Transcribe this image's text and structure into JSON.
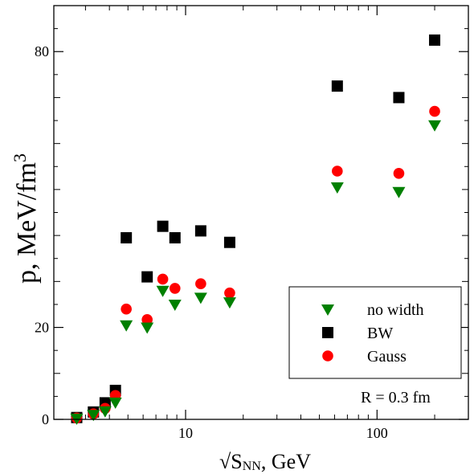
{
  "chart_data": {
    "type": "scatter",
    "xlabel_prefix": "√S",
    "xlabel_sub": "NN",
    "xlabel_suffix": ", GeV",
    "ylabel_main": "p, MeV/fm",
    "ylabel_sup": "3",
    "x_scale": "log",
    "xlim": [
      2.05,
      300
    ],
    "ylim": [
      0,
      90
    ],
    "x_major_ticks": [
      10,
      100
    ],
    "x_tick_labels": [
      "10",
      "100"
    ],
    "y_major_ticks": [
      0,
      20,
      80
    ],
    "y_tick_labels": [
      "0",
      "20",
      "80"
    ],
    "y_minor_ticks": [
      10,
      30,
      40,
      50,
      60,
      70
    ],
    "legend_position": "lower-right",
    "annotation": "R = 0.3 fm",
    "series": [
      {
        "name": "no width",
        "marker": "triangle-down",
        "color": "#008000",
        "x": [
          2.7,
          3.3,
          3.8,
          4.3,
          4.9,
          6.3,
          7.6,
          8.8,
          12.0,
          17.0,
          62.0,
          130.0,
          200.0
        ],
        "y": [
          0.2,
          1.0,
          1.8,
          3.7,
          20.5,
          20.0,
          28.0,
          25.0,
          26.5,
          25.5,
          50.5,
          49.5,
          64.0
        ]
      },
      {
        "name": "BW",
        "marker": "square",
        "color": "#000000",
        "x": [
          2.7,
          3.3,
          3.8,
          4.3,
          4.9,
          6.3,
          7.6,
          8.8,
          12.0,
          17.0,
          62.0,
          130.0,
          200.0
        ],
        "y": [
          0.4,
          1.6,
          3.6,
          6.3,
          39.5,
          31.0,
          42.0,
          39.5,
          41.0,
          38.5,
          72.5,
          70.0,
          82.5
        ]
      },
      {
        "name": "Gauss",
        "marker": "circle",
        "color": "#ff0000",
        "x": [
          2.7,
          3.3,
          3.8,
          4.3,
          4.9,
          6.3,
          7.6,
          8.8,
          12.0,
          17.0,
          62.0,
          130.0,
          200.0
        ],
        "y": [
          0.3,
          1.2,
          2.4,
          5.2,
          24.0,
          21.7,
          30.5,
          28.5,
          29.5,
          27.5,
          54.0,
          53.5,
          67.0
        ]
      }
    ]
  }
}
